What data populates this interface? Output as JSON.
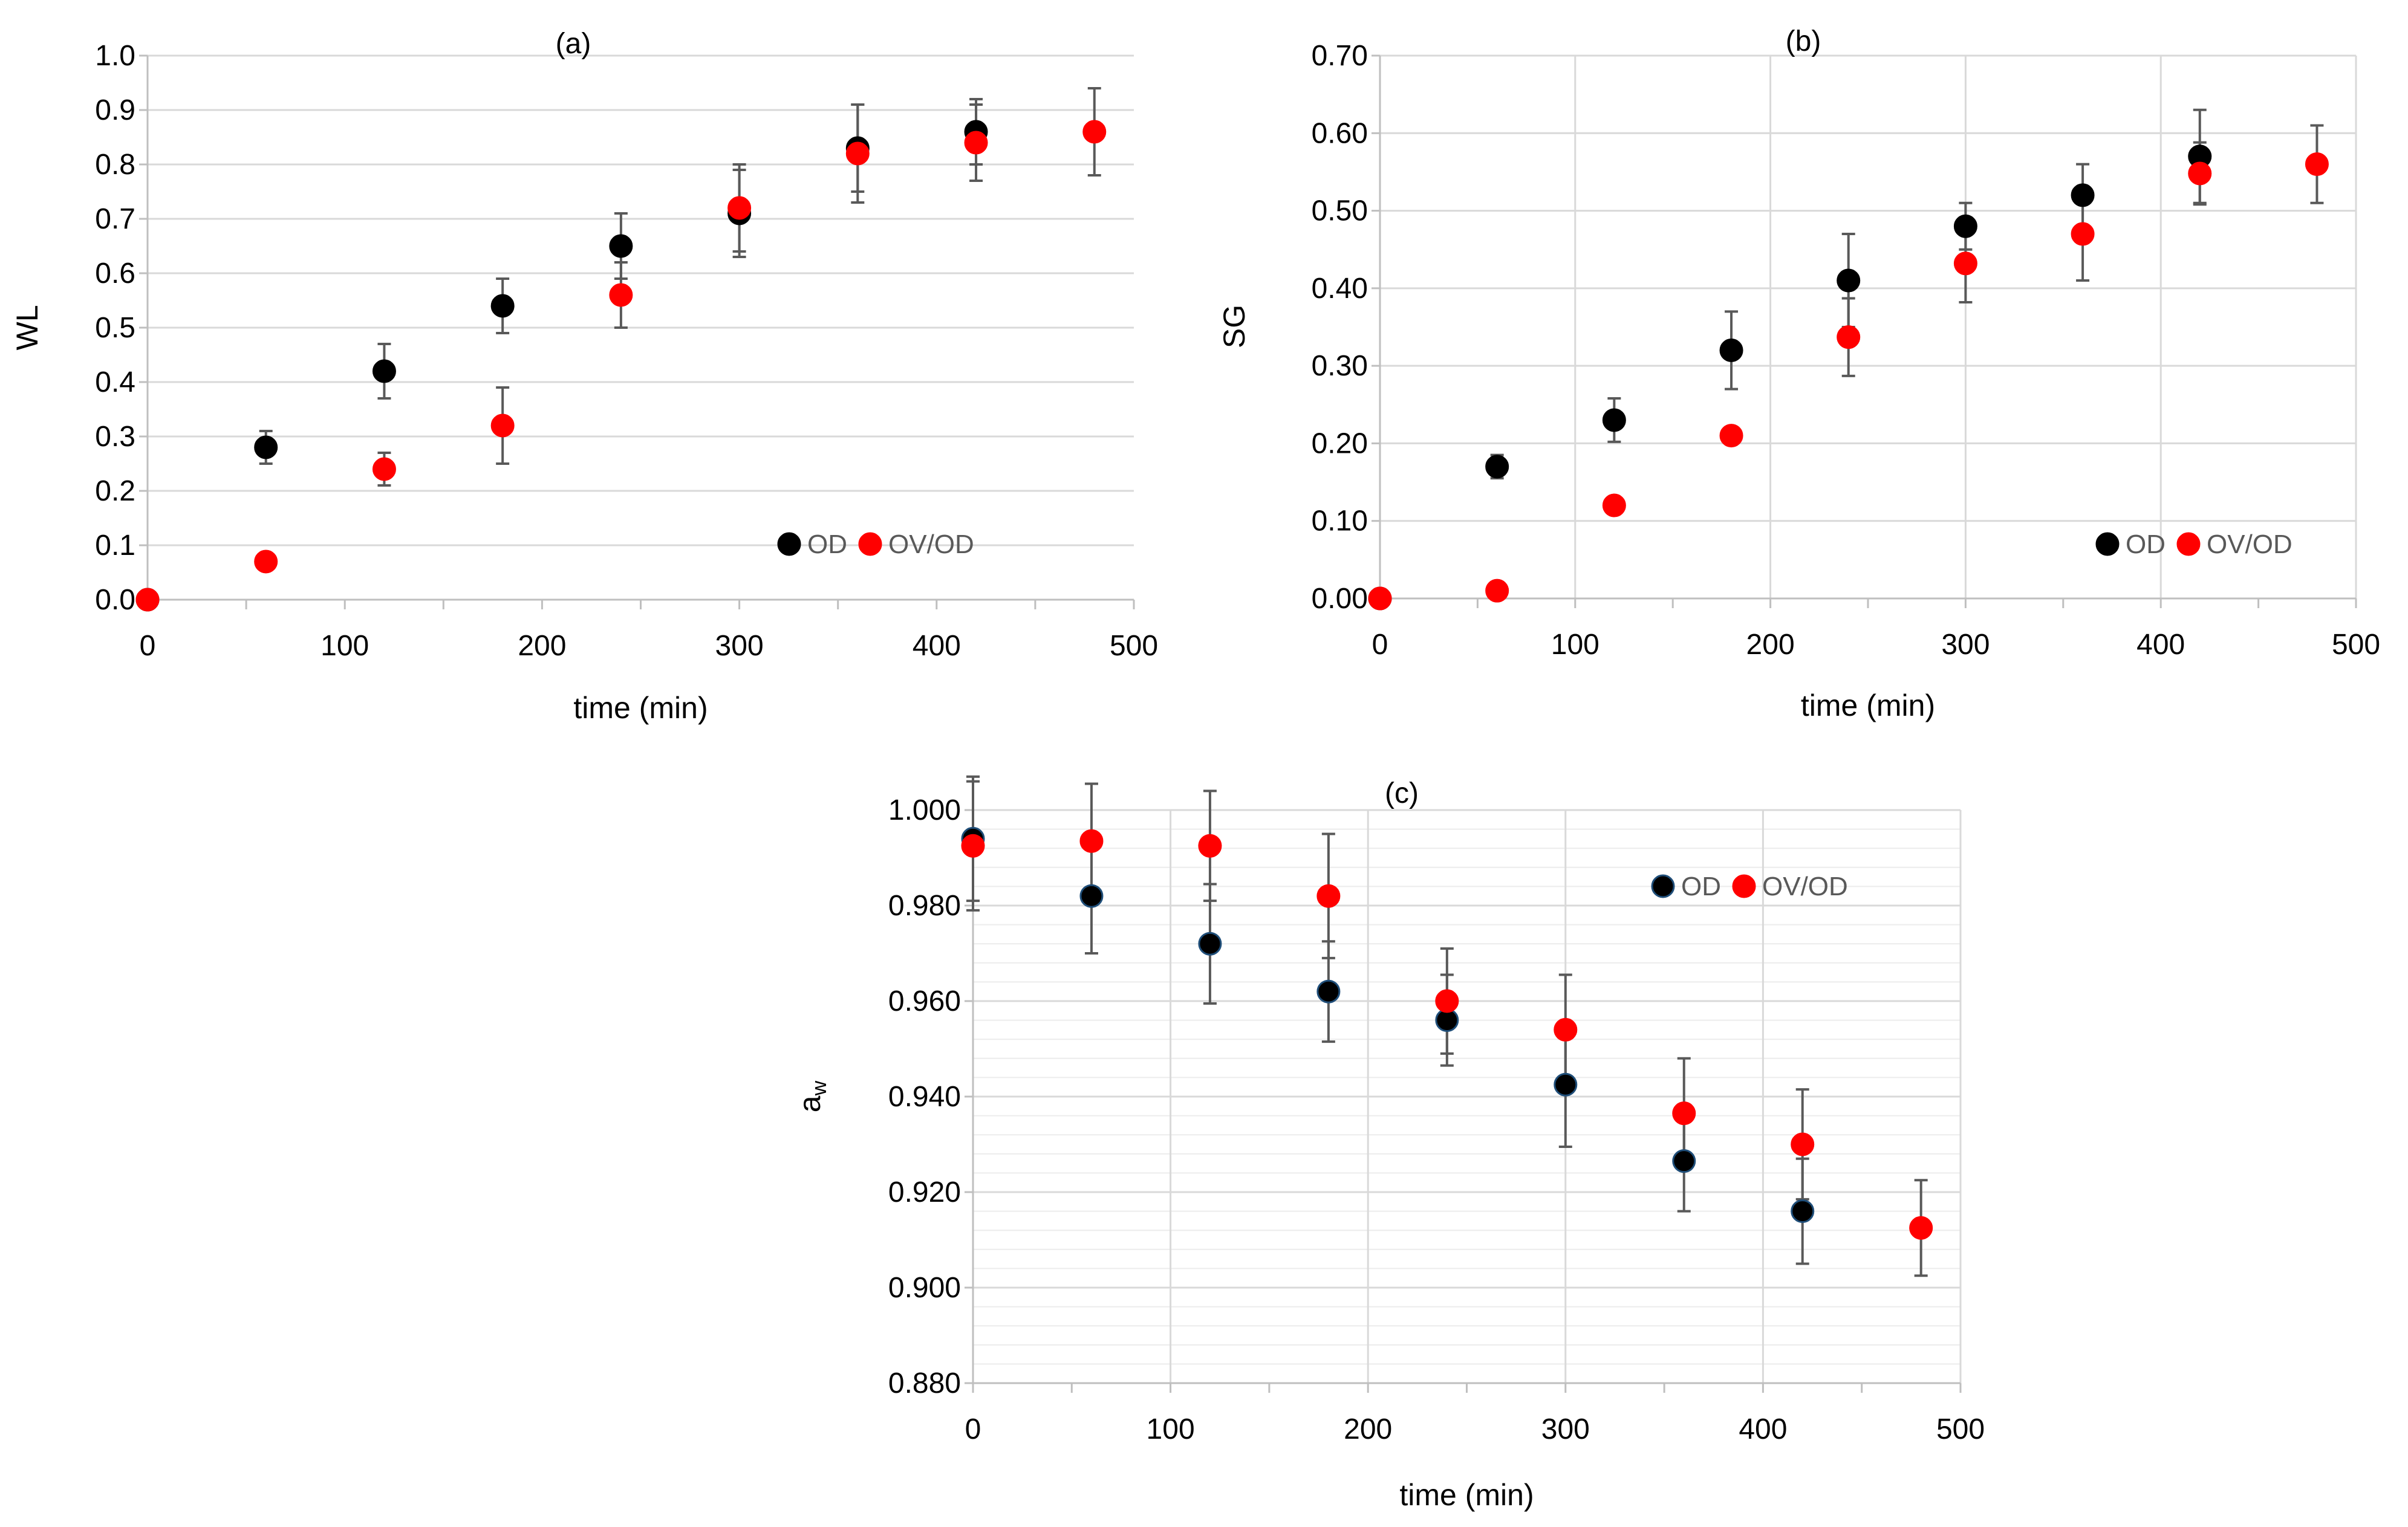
{
  "chart_data": [
    {
      "id": "a",
      "type": "scatter",
      "title": "(a)",
      "xlabel": "time (min)",
      "ylabel": "WL",
      "ylabel_sub": "",
      "xlim": [
        0,
        500
      ],
      "ylim": [
        0,
        1
      ],
      "xticks": [
        0,
        100,
        200,
        300,
        400,
        500
      ],
      "xtick_labels": [
        "0",
        "100",
        "200",
        "300",
        "400",
        "500"
      ],
      "yticks": [
        0,
        0.1,
        0.2,
        0.3,
        0.4,
        0.5,
        0.6,
        0.7,
        0.8,
        0.9,
        1.0
      ],
      "ytick_labels": [
        "0.0",
        "0.1",
        "0.2",
        "0.3",
        "0.4",
        "0.5",
        "0.6",
        "0.7",
        "0.8",
        "0.9",
        "1.0"
      ],
      "minor_xticks": [
        50,
        150,
        250,
        350,
        450
      ],
      "grid": "horizontal",
      "legend": "bottom-right",
      "series": [
        {
          "name": "OD",
          "color": "#000000",
          "x": [
            0,
            60,
            120,
            180,
            240,
            300,
            360,
            420
          ],
          "y": [
            0.0,
            0.28,
            0.42,
            0.54,
            0.65,
            0.71,
            0.83,
            0.86
          ],
          "err": [
            0.0,
            0.03,
            0.05,
            0.05,
            0.06,
            0.08,
            0.08,
            0.06
          ]
        },
        {
          "name": "OV/OD",
          "color": "#ff0000",
          "x": [
            0,
            60,
            120,
            180,
            240,
            300,
            360,
            420,
            480
          ],
          "y": [
            0.0,
            0.07,
            0.24,
            0.32,
            0.56,
            0.72,
            0.82,
            0.84,
            0.86
          ],
          "err": [
            0.0,
            0.0,
            0.03,
            0.07,
            0.06,
            0.08,
            0.09,
            0.07,
            0.08
          ]
        }
      ]
    },
    {
      "id": "b",
      "type": "scatter",
      "title": "(b)",
      "xlabel": "time (min)",
      "ylabel": "SG",
      "ylabel_sub": "",
      "xlim": [
        0,
        500
      ],
      "ylim": [
        0,
        0.7
      ],
      "xticks": [
        0,
        100,
        200,
        300,
        400,
        500
      ],
      "xtick_labels": [
        "0",
        "100",
        "200",
        "300",
        "400",
        "500"
      ],
      "yticks": [
        0,
        0.1,
        0.2,
        0.3,
        0.4,
        0.5,
        0.6,
        0.7
      ],
      "ytick_labels": [
        "0.00",
        "0.10",
        "0.20",
        "0.30",
        "0.40",
        "0.50",
        "0.60",
        "0.70"
      ],
      "minor_xticks": [
        50,
        150,
        250,
        350,
        450
      ],
      "grid": "both",
      "legend": "bottom-right",
      "series": [
        {
          "name": "OD",
          "color": "#000000",
          "x": [
            0,
            60,
            120,
            180,
            240,
            300,
            360,
            420
          ],
          "y": [
            0.0,
            0.17,
            0.23,
            0.32,
            0.41,
            0.48,
            0.52,
            0.57
          ],
          "err": [
            0.0,
            0.015,
            0.028,
            0.05,
            0.06,
            0.03,
            0.04,
            0.06
          ]
        },
        {
          "name": "OV/OD",
          "color": "#ff0000",
          "x": [
            0,
            60,
            120,
            180,
            240,
            300,
            360,
            420,
            480
          ],
          "y": [
            0.0,
            0.01,
            0.12,
            0.21,
            0.337,
            0.432,
            0.47,
            0.548,
            0.56
          ],
          "err": [
            0.0,
            0.0,
            0.0,
            0.0,
            0.05,
            0.05,
            0.06,
            0.04,
            0.05
          ]
        }
      ]
    },
    {
      "id": "c",
      "type": "scatter",
      "title": "(c)",
      "xlabel": "time (min)",
      "ylabel": "a",
      "ylabel_sub": "w",
      "xlim": [
        0,
        500
      ],
      "ylim": [
        0.88,
        1.0
      ],
      "xticks": [
        0,
        100,
        200,
        300,
        400,
        500
      ],
      "xtick_labels": [
        "0",
        "100",
        "200",
        "300",
        "400",
        "500"
      ],
      "yticks": [
        0.88,
        0.9,
        0.92,
        0.94,
        0.96,
        0.98,
        1.0
      ],
      "ytick_labels": [
        "0.880",
        "0.900",
        "0.920",
        "0.940",
        "0.960",
        "0.980",
        "1.000"
      ],
      "minor_xticks": [
        50,
        150,
        250,
        350,
        450
      ],
      "minor_yticks": [
        0.884,
        0.888,
        0.892,
        0.896,
        0.904,
        0.908,
        0.912,
        0.916,
        0.924,
        0.928,
        0.932,
        0.936,
        0.944,
        0.948,
        0.952,
        0.956,
        0.964,
        0.968,
        0.972,
        0.976,
        0.984,
        0.988,
        0.992,
        0.996
      ],
      "grid": "both",
      "legend": "top-right",
      "series": [
        {
          "name": "OD",
          "color": "#000000",
          "edge": "#1f4e79",
          "x": [
            0,
            60,
            120,
            180,
            240,
            300,
            360,
            420
          ],
          "y": [
            0.994,
            0.982,
            0.972,
            0.962,
            0.956,
            0.9425,
            0.9265,
            0.916
          ],
          "err": [
            0.013,
            0.012,
            0.0125,
            0.0105,
            0.0095,
            0.013,
            0.0105,
            0.011
          ]
        },
        {
          "name": "OV/OD",
          "color": "#ff0000",
          "edge": "#ff0000",
          "x": [
            0,
            60,
            120,
            180,
            240,
            300,
            360,
            420,
            480
          ],
          "y": [
            0.9925,
            0.9935,
            0.9925,
            0.982,
            0.96,
            0.954,
            0.9365,
            0.93,
            0.9125
          ],
          "err": [
            0.0135,
            0.012,
            0.0115,
            0.013,
            0.011,
            0.0115,
            0.0115,
            0.0115,
            0.01
          ]
        }
      ]
    }
  ]
}
